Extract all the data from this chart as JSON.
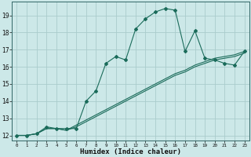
{
  "title": "",
  "xlabel": "Humidex (Indice chaleur)",
  "ylabel": "",
  "bg_color": "#cce8e8",
  "grid_color": "#aacccc",
  "line_color": "#1a6b5a",
  "xlim": [
    -0.5,
    23.5
  ],
  "ylim": [
    11.7,
    19.8
  ],
  "yticks": [
    12,
    13,
    14,
    15,
    16,
    17,
    18,
    19
  ],
  "xticks": [
    0,
    1,
    2,
    3,
    4,
    5,
    6,
    7,
    8,
    9,
    10,
    11,
    12,
    13,
    14,
    15,
    16,
    17,
    18,
    19,
    20,
    21,
    22,
    23
  ],
  "line1_x": [
    0,
    1,
    2,
    3,
    4,
    5,
    6,
    7,
    8,
    9,
    10,
    11,
    12,
    13,
    14,
    15,
    16,
    17,
    18,
    19,
    20,
    21,
    22,
    23
  ],
  "line1_y": [
    12.0,
    12.0,
    12.1,
    12.5,
    12.4,
    12.4,
    12.4,
    14.0,
    14.6,
    16.2,
    16.6,
    16.4,
    18.2,
    18.8,
    19.2,
    19.4,
    19.3,
    16.9,
    18.1,
    16.5,
    16.4,
    16.2,
    16.1,
    16.9
  ],
  "line2_x": [
    0,
    1,
    2,
    3,
    4,
    5,
    6,
    7,
    8,
    9,
    10,
    11,
    12,
    13,
    14,
    15,
    16,
    17,
    18,
    19,
    20,
    21,
    22,
    23
  ],
  "line2_y": [
    12.0,
    12.0,
    12.1,
    12.4,
    12.4,
    12.3,
    12.6,
    12.9,
    13.2,
    13.5,
    13.8,
    14.1,
    14.4,
    14.7,
    15.0,
    15.3,
    15.6,
    15.8,
    16.1,
    16.3,
    16.5,
    16.6,
    16.7,
    16.9
  ],
  "line3_x": [
    0,
    1,
    2,
    3,
    4,
    5,
    6,
    7,
    8,
    9,
    10,
    11,
    12,
    13,
    14,
    15,
    16,
    17,
    18,
    19,
    20,
    21,
    22,
    23
  ],
  "line3_y": [
    12.0,
    12.0,
    12.1,
    12.4,
    12.4,
    12.3,
    12.5,
    12.8,
    13.1,
    13.4,
    13.7,
    14.0,
    14.3,
    14.6,
    14.9,
    15.2,
    15.5,
    15.7,
    16.0,
    16.2,
    16.4,
    16.5,
    16.6,
    16.8
  ]
}
